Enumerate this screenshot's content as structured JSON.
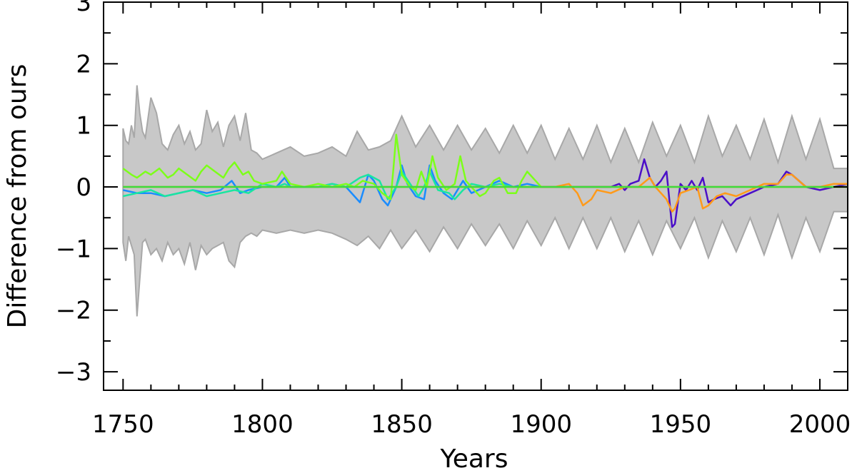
{
  "chart_data": {
    "type": "line",
    "title": "",
    "xlabel": "Years",
    "ylabel": "Difference from ours",
    "xlim": [
      1743,
      2010
    ],
    "ylim": [
      -3.3,
      3.0
    ],
    "x_ticks": [
      1750,
      1800,
      1850,
      1900,
      1950,
      2000
    ],
    "x_tick_labels": [
      "1750",
      "1800",
      "1850",
      "1900",
      "1950",
      "2000"
    ],
    "y_ticks": [
      -3,
      -2,
      -1,
      0,
      1,
      2,
      3
    ],
    "y_tick_labels": [
      "−3",
      "−2",
      "−1",
      "0",
      "1",
      "2",
      "3"
    ],
    "grid": false,
    "colors": {
      "band": "#c8c8c8",
      "band_edge": "#a8a8a8",
      "orange_flat": "#ff7f24",
      "purple": "#4b0fc8",
      "orange": "#ff9a1a",
      "blue": "#1a8cff",
      "cyan_green": "#1ae6a0",
      "lime": "#7cff1a",
      "green_flat": "#3cdc3c"
    },
    "band": {
      "x": [
        1750,
        1751,
        1752,
        1753,
        1754,
        1755,
        1756,
        1757,
        1758,
        1760,
        1762,
        1764,
        1766,
        1768,
        1770,
        1772,
        1774,
        1776,
        1778,
        1780,
        1782,
        1784,
        1786,
        1788,
        1790,
        1792,
        1794,
        1796,
        1798,
        1800,
        1805,
        1810,
        1815,
        1820,
        1825,
        1830,
        1834,
        1838,
        1842,
        1846,
        1850,
        1855,
        1860,
        1865,
        1870,
        1875,
        1880,
        1885,
        1890,
        1895,
        1900,
        1905,
        1910,
        1915,
        1920,
        1925,
        1930,
        1935,
        1940,
        1945,
        1950,
        1955,
        1960,
        1965,
        1970,
        1975,
        1980,
        1985,
        1990,
        1995,
        2000,
        2005,
        2010
      ],
      "upper": [
        0.95,
        0.75,
        0.7,
        1.0,
        0.8,
        1.65,
        1.2,
        0.9,
        0.8,
        1.45,
        1.2,
        0.7,
        0.6,
        0.85,
        1.0,
        0.7,
        0.9,
        0.6,
        0.7,
        1.25,
        0.9,
        1.05,
        0.65,
        1.0,
        1.15,
        0.75,
        1.2,
        0.6,
        0.55,
        0.45,
        0.55,
        0.65,
        0.5,
        0.55,
        0.65,
        0.5,
        0.9,
        0.6,
        0.65,
        0.75,
        1.15,
        0.65,
        1.0,
        0.6,
        1.0,
        0.6,
        0.95,
        0.55,
        1.0,
        0.55,
        1.0,
        0.45,
        0.95,
        0.45,
        1.0,
        0.4,
        0.95,
        0.4,
        1.05,
        0.5,
        1.0,
        0.4,
        1.15,
        0.5,
        1.0,
        0.45,
        1.1,
        0.4,
        1.15,
        0.45,
        1.1,
        0.3,
        0.3
      ],
      "lower": [
        -0.9,
        -1.2,
        -0.8,
        -0.95,
        -1.1,
        -2.1,
        -1.5,
        -0.9,
        -0.85,
        -1.1,
        -1.0,
        -1.2,
        -0.9,
        -1.1,
        -1.0,
        -1.25,
        -0.9,
        -1.35,
        -0.95,
        -1.1,
        -1.0,
        -0.95,
        -0.9,
        -1.2,
        -1.3,
        -0.9,
        -0.8,
        -0.75,
        -0.8,
        -0.7,
        -0.75,
        -0.7,
        -0.75,
        -0.7,
        -0.75,
        -0.85,
        -0.95,
        -0.8,
        -1.0,
        -0.7,
        -1.0,
        -0.7,
        -1.05,
        -0.65,
        -1.0,
        -0.6,
        -0.95,
        -0.6,
        -1.0,
        -0.55,
        -0.95,
        -0.5,
        -1.0,
        -0.5,
        -1.0,
        -0.5,
        -1.05,
        -0.55,
        -1.1,
        -0.55,
        -1.0,
        -0.5,
        -1.15,
        -0.55,
        -1.05,
        -0.5,
        -1.1,
        -0.45,
        -1.15,
        -0.5,
        -1.05,
        -0.4,
        -0.4
      ]
    },
    "series": [
      {
        "color_key": "purple",
        "x": [
          1900,
          1905,
          1910,
          1915,
          1920,
          1925,
          1928,
          1930,
          1932,
          1935,
          1937,
          1939,
          1941,
          1943,
          1945,
          1947,
          1948,
          1950,
          1952,
          1954,
          1956,
          1958,
          1960,
          1962,
          1965,
          1968,
          1970,
          1975,
          1980,
          1985,
          1988,
          1990,
          1995,
          2000,
          2005,
          2010
        ],
        "values": [
          0.0,
          0.0,
          0.0,
          0.0,
          0.0,
          0.0,
          0.05,
          -0.05,
          0.05,
          0.1,
          0.45,
          0.15,
          0.0,
          0.1,
          0.25,
          -0.65,
          -0.6,
          0.05,
          -0.05,
          0.1,
          -0.05,
          0.15,
          -0.25,
          -0.2,
          -0.15,
          -0.3,
          -0.2,
          -0.1,
          0.0,
          0.05,
          0.25,
          0.2,
          0.0,
          -0.05,
          0.0,
          0.05
        ]
      },
      {
        "color_key": "orange",
        "x": [
          1900,
          1905,
          1910,
          1913,
          1915,
          1918,
          1920,
          1925,
          1930,
          1935,
          1939,
          1941,
          1945,
          1947,
          1948,
          1950,
          1953,
          1956,
          1958,
          1960,
          1963,
          1966,
          1970,
          1975,
          1980,
          1985,
          1988,
          1990,
          1995,
          2000,
          2005,
          2010
        ],
        "values": [
          0.0,
          0.0,
          0.05,
          -0.1,
          -0.3,
          -0.2,
          -0.05,
          -0.1,
          0.0,
          0.0,
          0.15,
          0.0,
          -0.2,
          -0.4,
          -0.35,
          -0.1,
          -0.05,
          0.0,
          -0.35,
          -0.3,
          -0.15,
          -0.1,
          -0.15,
          -0.05,
          0.05,
          0.05,
          0.2,
          0.2,
          0.0,
          0.0,
          0.05,
          0.05
        ]
      },
      {
        "color_key": "blue",
        "x": [
          1750,
          1755,
          1760,
          1765,
          1770,
          1775,
          1780,
          1785,
          1789,
          1792,
          1795,
          1800,
          1805,
          1808,
          1810,
          1815,
          1820,
          1825,
          1830,
          1835,
          1838,
          1840,
          1843,
          1845,
          1848,
          1850,
          1852,
          1855,
          1858,
          1860,
          1862,
          1865,
          1868,
          1870,
          1872,
          1875,
          1880,
          1885,
          1890,
          1895,
          1900
        ],
        "values": [
          -0.05,
          -0.1,
          -0.1,
          -0.15,
          -0.1,
          -0.05,
          -0.1,
          -0.05,
          0.1,
          -0.1,
          -0.05,
          0.0,
          0.0,
          0.15,
          0.0,
          0.0,
          0.0,
          0.05,
          0.0,
          -0.25,
          0.2,
          0.1,
          -0.2,
          -0.3,
          0.0,
          0.35,
          0.05,
          -0.15,
          -0.2,
          0.35,
          0.1,
          -0.1,
          -0.2,
          -0.05,
          0.1,
          -0.1,
          0.0,
          0.1,
          0.0,
          0.05,
          0.0
        ]
      },
      {
        "color_key": "cyan_green",
        "x": [
          1750,
          1755,
          1760,
          1765,
          1770,
          1775,
          1780,
          1785,
          1790,
          1795,
          1800,
          1805,
          1808,
          1810,
          1815,
          1820,
          1825,
          1830,
          1835,
          1838,
          1842,
          1845,
          1848,
          1850,
          1853,
          1856,
          1858,
          1860,
          1863,
          1867,
          1869,
          1872,
          1875,
          1880,
          1885,
          1890,
          1895,
          1900
        ],
        "values": [
          -0.15,
          -0.1,
          -0.05,
          -0.15,
          -0.1,
          -0.05,
          -0.15,
          -0.1,
          -0.05,
          -0.1,
          0.05,
          0.0,
          0.05,
          0.0,
          0.0,
          0.0,
          0.05,
          0.0,
          0.15,
          0.2,
          0.1,
          -0.2,
          0.0,
          0.25,
          0.05,
          -0.15,
          0.0,
          0.25,
          -0.05,
          -0.1,
          -0.2,
          -0.05,
          0.05,
          0.0,
          0.05,
          0.0,
          0.0,
          0.0
        ]
      },
      {
        "color_key": "lime",
        "x": [
          1750,
          1753,
          1755,
          1758,
          1760,
          1763,
          1766,
          1768,
          1770,
          1773,
          1776,
          1778,
          1780,
          1783,
          1786,
          1788,
          1790,
          1793,
          1795,
          1797,
          1800,
          1805,
          1807,
          1810,
          1815,
          1820,
          1825,
          1830,
          1833,
          1836,
          1840,
          1843,
          1846,
          1847,
          1848,
          1850,
          1853,
          1855,
          1857,
          1859,
          1861,
          1863,
          1866,
          1869,
          1871,
          1873,
          1876,
          1878,
          1880,
          1883,
          1885,
          1888,
          1891,
          1893,
          1895,
          1900
        ],
        "values": [
          0.3,
          0.2,
          0.15,
          0.25,
          0.2,
          0.3,
          0.15,
          0.2,
          0.3,
          0.2,
          0.1,
          0.25,
          0.35,
          0.25,
          0.15,
          0.3,
          0.4,
          0.2,
          0.25,
          0.1,
          0.05,
          0.1,
          0.25,
          0.05,
          0.0,
          0.05,
          0.0,
          0.05,
          0.0,
          0.1,
          0.05,
          -0.1,
          -0.2,
          0.3,
          0.85,
          0.2,
          0.0,
          -0.05,
          0.25,
          0.0,
          0.5,
          0.15,
          -0.05,
          0.05,
          0.5,
          0.1,
          -0.05,
          -0.15,
          -0.1,
          0.1,
          0.15,
          -0.1,
          -0.1,
          0.1,
          0.25,
          0.0
        ]
      },
      {
        "color_key": "orange_flat",
        "x": [
          1750,
          2010
        ],
        "values": [
          0.0,
          0.0
        ]
      },
      {
        "color_key": "green_flat",
        "x": [
          1750,
          2010
        ],
        "values": [
          0.0,
          0.0
        ]
      }
    ]
  }
}
